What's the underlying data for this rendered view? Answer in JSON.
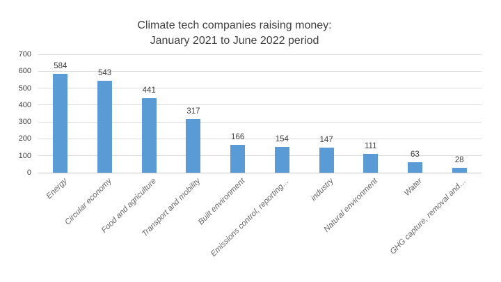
{
  "chart_data": {
    "type": "bar",
    "title_lines": [
      "Climate tech companies raising money:",
      "January 2021 to June 2022 period"
    ],
    "categories": [
      "Energy",
      "Circular economy",
      "Food and agriculture",
      "Transport and mobility",
      "Built environment",
      "Emissions control, reporting…",
      "industry",
      "Natural environment",
      "Water",
      "GHG capture, removal and…"
    ],
    "values": [
      584,
      543,
      441,
      317,
      166,
      154,
      147,
      111,
      63,
      28
    ],
    "value_labels": [
      "584",
      "543",
      "441",
      "317",
      "166",
      "154",
      "147",
      "111",
      "63",
      "28"
    ],
    "yticks": [
      0,
      100,
      200,
      300,
      400,
      500,
      600,
      700
    ],
    "ylim": [
      0,
      700
    ],
    "xlabel": "",
    "ylabel": "",
    "grid": true,
    "legend": "none",
    "colors": {
      "bar_fill": "#5b9bd5",
      "gridline": "#d9d9d9",
      "axis_line": "#c6c6c6",
      "title_text": "#404040",
      "value_text": "#404040",
      "ytick_text": "#404040",
      "category_text": "#666666"
    }
  }
}
